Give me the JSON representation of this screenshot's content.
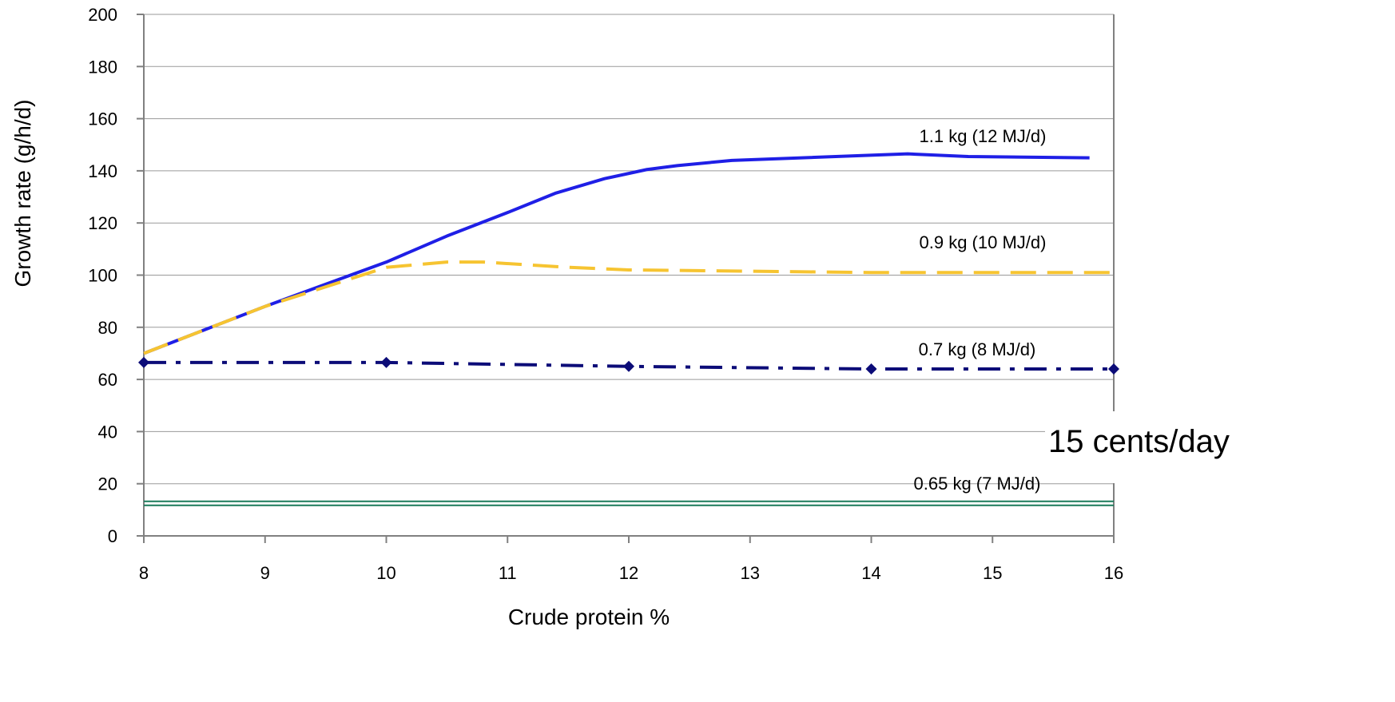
{
  "chart_data": {
    "type": "line",
    "xlabel": "Crude protein %",
    "ylabel": "Growth rate (g/h/d)",
    "xlim": [
      8,
      16
    ],
    "ylim": [
      0,
      200
    ],
    "x_ticks": [
      "8",
      "9",
      "10",
      "11",
      "12",
      "13",
      "14",
      "15",
      "16"
    ],
    "y_ticks": [
      "0",
      "20",
      "40",
      "60",
      "80",
      "100",
      "120",
      "140",
      "160",
      "180",
      "200"
    ],
    "grid": "horizontal",
    "annotation": "15 cents/day",
    "colors": {
      "s1": "#1f1fe6",
      "s2": "#f6c431",
      "s3": "#0c0c78",
      "s4": "#1a7a5a",
      "grid": "#9a9a9a",
      "axis": "#808080"
    },
    "series": [
      {
        "name": "1.1 kg (12 MJ/d)",
        "style": "solid",
        "x": [
          8,
          9,
          10,
          10.5,
          11,
          11.4,
          11.8,
          12.15,
          12.4,
          12.85,
          14.3,
          14.8,
          15.8
        ],
        "y": [
          70,
          88,
          105,
          115,
          124,
          131.5,
          137,
          140.5,
          142,
          144,
          146.5,
          145.5,
          145
        ]
      },
      {
        "name": "0.9 kg (10 MJ/d)",
        "style": "dashed",
        "x": [
          8,
          9,
          10,
          10.5,
          10.8,
          11.5,
          12,
          13,
          14,
          15,
          16
        ],
        "y": [
          70,
          88,
          103,
          105,
          105,
          103,
          102,
          101.5,
          101,
          101,
          101
        ]
      },
      {
        "name": "0.7 kg (8 MJ/d)",
        "style": "dash-dot",
        "markers": true,
        "x": [
          8,
          10,
          12,
          14,
          16
        ],
        "y": [
          66.5,
          66.5,
          65,
          64,
          64
        ]
      },
      {
        "name": "0.65 kg (7 MJ/d)",
        "style": "double",
        "x": [
          8,
          16
        ],
        "y": [
          12.5,
          12.5
        ]
      }
    ]
  }
}
